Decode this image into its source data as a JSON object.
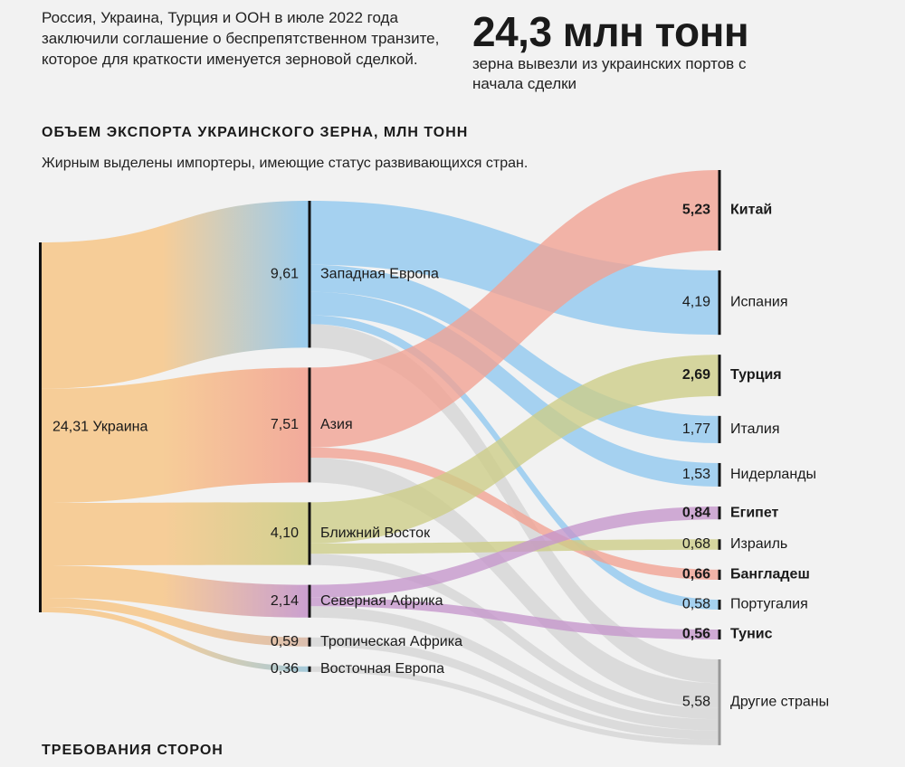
{
  "intro_text": "Россия, Украина, Турция и ООН в июле 2022 года заключили соглашение о беспрепятственном транзите, которое для краткости именуется зерновой сделкой.",
  "headline_number": "24,3 млн тонн",
  "headline_caption": "зерна вывезли из украинских портов с начала сделки",
  "section_title": "ОБЪЕМ ЭКСПОРТА УКРАИНСКОГО ЗЕРНА, МЛН ТОНН",
  "chart_subtitle": "Жирным выделены импортеры, имеющие статус развивающихся стран.",
  "footer_title": "ТРЕБОВАНИЯ СТОРОН",
  "colors": {
    "west_europe": "#8fc8ef",
    "asia": "#f2a292",
    "middle_east": "#cdcd86",
    "north_africa": "#c596cc",
    "tropical_africa": "#d9b9a8",
    "east_europe": "#9cc6d8",
    "source": "#f7c98e",
    "other": "#c9c9c9"
  },
  "chart_data": {
    "type": "sankey",
    "unit": "млн тонн",
    "source": {
      "name": "Украина",
      "value": 24.31,
      "label": "24,31"
    },
    "regions": [
      {
        "id": "west_europe",
        "name": "Западная Европа",
        "value": 9.61,
        "label": "9,61"
      },
      {
        "id": "asia",
        "name": "Азия",
        "value": 7.51,
        "label": "7,51"
      },
      {
        "id": "middle_east",
        "name": "Ближний Восток",
        "value": 4.1,
        "label": "4,10"
      },
      {
        "id": "north_africa",
        "name": "Северная Африка",
        "value": 2.14,
        "label": "2,14"
      },
      {
        "id": "tropical_africa",
        "name": "Тропическая Африка",
        "value": 0.59,
        "label": "0,59"
      },
      {
        "id": "east_europe",
        "name": "Восточная Европа",
        "value": 0.36,
        "label": "0,36"
      }
    ],
    "countries": [
      {
        "id": "china",
        "name": "Китай",
        "value": 5.23,
        "label": "5,23",
        "developing": true,
        "region": "asia"
      },
      {
        "id": "spain",
        "name": "Испания",
        "value": 4.19,
        "label": "4,19",
        "developing": false,
        "region": "west_europe"
      },
      {
        "id": "turkey",
        "name": "Турция",
        "value": 2.69,
        "label": "2,69",
        "developing": true,
        "region": "middle_east"
      },
      {
        "id": "italy",
        "name": "Италия",
        "value": 1.77,
        "label": "1,77",
        "developing": false,
        "region": "west_europe"
      },
      {
        "id": "netherlands",
        "name": "Нидерланды",
        "value": 1.53,
        "label": "1,53",
        "developing": false,
        "region": "west_europe"
      },
      {
        "id": "egypt",
        "name": "Египет",
        "value": 0.84,
        "label": "0,84",
        "developing": true,
        "region": "north_africa"
      },
      {
        "id": "israel",
        "name": "Израиль",
        "value": 0.68,
        "label": "0,68",
        "developing": false,
        "region": "middle_east"
      },
      {
        "id": "bangladesh",
        "name": "Бангладеш",
        "value": 0.66,
        "label": "0,66",
        "developing": true,
        "region": "asia"
      },
      {
        "id": "portugal",
        "name": "Португалия",
        "value": 0.58,
        "label": "0,58",
        "developing": false,
        "region": "west_europe"
      },
      {
        "id": "tunisia",
        "name": "Тунис",
        "value": 0.56,
        "label": "0,56",
        "developing": true,
        "region": "north_africa"
      },
      {
        "id": "other",
        "name": "Другие страны",
        "value": 5.58,
        "label": "5,58",
        "developing": false,
        "region": "mixed"
      }
    ],
    "flows": [
      {
        "from": "west_europe",
        "to": "spain",
        "value": 4.19
      },
      {
        "from": "west_europe",
        "to": "italy",
        "value": 1.77
      },
      {
        "from": "west_europe",
        "to": "netherlands",
        "value": 1.53
      },
      {
        "from": "west_europe",
        "to": "portugal",
        "value": 0.58
      },
      {
        "from": "west_europe",
        "to": "other",
        "value": 1.54
      },
      {
        "from": "asia",
        "to": "china",
        "value": 5.23
      },
      {
        "from": "asia",
        "to": "bangladesh",
        "value": 0.66
      },
      {
        "from": "asia",
        "to": "other",
        "value": 1.62
      },
      {
        "from": "middle_east",
        "to": "turkey",
        "value": 2.69
      },
      {
        "from": "middle_east",
        "to": "israel",
        "value": 0.68
      },
      {
        "from": "middle_east",
        "to": "other",
        "value": 0.73
      },
      {
        "from": "north_africa",
        "to": "egypt",
        "value": 0.84
      },
      {
        "from": "north_africa",
        "to": "tunisia",
        "value": 0.56
      },
      {
        "from": "north_africa",
        "to": "other",
        "value": 0.74
      },
      {
        "from": "tropical_africa",
        "to": "other",
        "value": 0.59
      },
      {
        "from": "east_europe",
        "to": "other",
        "value": 0.36
      }
    ]
  }
}
